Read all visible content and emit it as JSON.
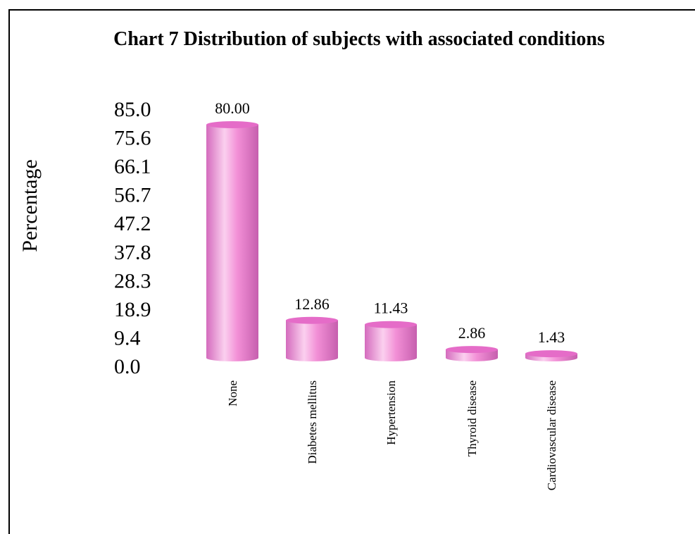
{
  "chart_data": {
    "type": "bar",
    "title": "Chart 7 Distribution of subjects with associated conditions",
    "ylabel": "Percentage",
    "xlabel": "",
    "categories": [
      "None",
      "Diabetes mellitus",
      "Hypertension",
      "Thyroid disease",
      "Cardiovascular disease"
    ],
    "values": [
      80.0,
      12.86,
      11.43,
      2.86,
      1.43
    ],
    "value_labels": [
      "80.00",
      "12.86",
      "11.43",
      "2.86",
      "1.43"
    ],
    "y_ticks": [
      "85.0",
      "75.6",
      "66.1",
      "56.7",
      "47.2",
      "37.8",
      "28.3",
      "18.9",
      "9.4",
      "0.0"
    ],
    "ylim": [
      0,
      85
    ],
    "grid": false,
    "legend": "none",
    "bar_style": "3d-cylinder",
    "colors": {
      "bar": "#f28fd6",
      "bar_light": "#fbd0ef",
      "bar_dark": "#c65fae",
      "bar_top": "#e56cc8"
    }
  }
}
